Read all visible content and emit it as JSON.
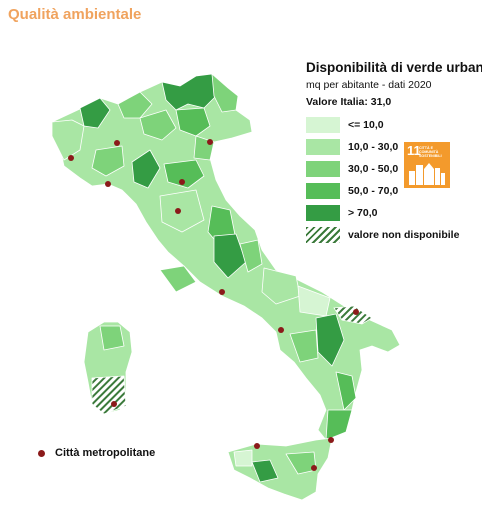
{
  "page": {
    "section_title": "Qualità ambientale"
  },
  "legend": {
    "title": "Disponibilità di verde urbano",
    "subtitle": "mq per abitante - dati 2020",
    "national_value": "Valore Italia: 31,0",
    "classes": [
      {
        "label": "<= 10,0",
        "color": "#d6f5d3"
      },
      {
        "label": "10,0 - 30,0",
        "color": "#a9e6a4"
      },
      {
        "label": "30,0 - 50,0",
        "color": "#7ed37a"
      },
      {
        "label": "50,0 - 70,0",
        "color": "#56bd58"
      },
      {
        "label": "> 70,0",
        "color": "#349c44"
      },
      {
        "label": "valore non disponibile",
        "color": "hatch"
      }
    ]
  },
  "sdg_badge": {
    "number": "11",
    "text": "CITTÀ E COMUNITÀ SOSTENIBILI",
    "color": "#f39a2c"
  },
  "metro_legend": {
    "label": "Città metropolitane",
    "marker_color": "#8b1a1a"
  }
}
